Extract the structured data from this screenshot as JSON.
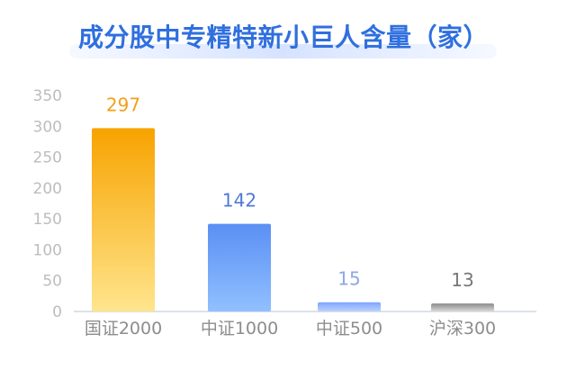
{
  "chart_data": {
    "type": "bar",
    "title": "成分股中专精特新小巨人含量（家）",
    "categories": [
      "国证2000",
      "中证1000",
      "中证500",
      "沪深300"
    ],
    "values": [
      297,
      142,
      15,
      13
    ],
    "data_labels": [
      "297",
      "142",
      "15",
      "13"
    ],
    "ylim": [
      0,
      350
    ],
    "yticks": [
      "0",
      "50",
      "100",
      "150",
      "200",
      "250",
      "300",
      "350"
    ],
    "xlabel": "",
    "ylabel": "",
    "grid": false,
    "legend": "none",
    "colors": {
      "bar_1_top": "#f7a300",
      "bar_1_bottom": "#ffe58d",
      "bar_2_top": "#5b8ff4",
      "bar_2_bottom": "#90c0ff",
      "bar_3_top": "#7ca4ff",
      "bar_3_bottom": "#bfd2ff",
      "bar_4_top": "#8a8a8a",
      "bar_4_bottom": "#d9d9d9",
      "label_1": "#f0a11a",
      "label_2": "#4f79d6",
      "label_3": "#8ea7e6",
      "label_4": "#777777",
      "axis": "#c8d0dc",
      "tick": "#bdbdbd",
      "title": "#2f6fdf"
    }
  }
}
